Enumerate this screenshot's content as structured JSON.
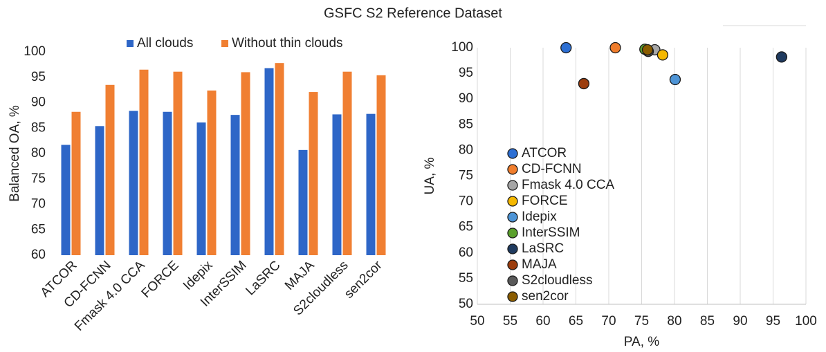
{
  "title": "GSFC S2 Reference Dataset",
  "chart_data": [
    {
      "type": "bar",
      "ylabel": "Balanced OA, %",
      "categories": [
        "ATCOR",
        "CD-FCNN",
        "Fmask 4.0 CCA",
        "FORCE",
        "Idepix",
        "InterSSIM",
        "LaSRC",
        "MAJA",
        "S2cloudless",
        "sen2cor"
      ],
      "series": [
        {
          "name": "All clouds",
          "color": "#2e66c7",
          "values": [
            81.7,
            85.4,
            88.4,
            88.2,
            86.1,
            87.6,
            96.8,
            80.7,
            87.7,
            87.8
          ]
        },
        {
          "name": "Without thin clouds",
          "color": "#f07f32",
          "values": [
            88.2,
            93.5,
            96.5,
            96.1,
            92.4,
            96.0,
            97.8,
            92.1,
            96.1,
            95.4
          ]
        }
      ],
      "ylim": [
        60,
        100
      ],
      "yticks": [
        60,
        65,
        70,
        75,
        80,
        85,
        90,
        95,
        100
      ],
      "legend": "top"
    },
    {
      "type": "scatter",
      "xlabel": "PA, %",
      "ylabel": "UA, %",
      "series": [
        {
          "name": "ATCOR",
          "color": "#2d6fd3",
          "x": [
            63.5
          ],
          "values": [
            100
          ]
        },
        {
          "name": "CD-FCNN",
          "color": "#f07d2c",
          "x": [
            71.0
          ],
          "values": [
            100
          ]
        },
        {
          "name": "Fmask 4.0 CCA",
          "color": "#a6a6a6",
          "x": [
            77.0
          ],
          "values": [
            99.6
          ]
        },
        {
          "name": "FORCE",
          "color": "#f5b800",
          "x": [
            78.2
          ],
          "values": [
            98.6
          ]
        },
        {
          "name": "Idepix",
          "color": "#4d94d6",
          "x": [
            80.1
          ],
          "values": [
            93.8
          ]
        },
        {
          "name": "InterSSIM",
          "color": "#5aa02c",
          "x": [
            75.5
          ],
          "values": [
            99.7
          ]
        },
        {
          "name": "LaSRC",
          "color": "#1f3a5f",
          "x": [
            96.3
          ],
          "values": [
            98.2
          ]
        },
        {
          "name": "MAJA",
          "color": "#9c3d0e",
          "x": [
            66.2
          ],
          "values": [
            93.0
          ]
        },
        {
          "name": "S2cloudless",
          "color": "#595959",
          "x": [
            76.0
          ],
          "values": [
            99.3
          ]
        },
        {
          "name": "sen2cor",
          "color": "#8a5c00",
          "x": [
            75.9
          ],
          "values": [
            99.6
          ]
        }
      ],
      "xlim": [
        50,
        100
      ],
      "xticks": [
        50,
        55,
        60,
        65,
        70,
        75,
        80,
        85,
        90,
        95,
        100
      ],
      "ylim": [
        50,
        100
      ],
      "yticks": [
        50,
        55,
        60,
        65,
        70,
        75,
        80,
        85,
        90,
        95,
        100
      ],
      "grid": "x",
      "legend": "lower left"
    }
  ]
}
